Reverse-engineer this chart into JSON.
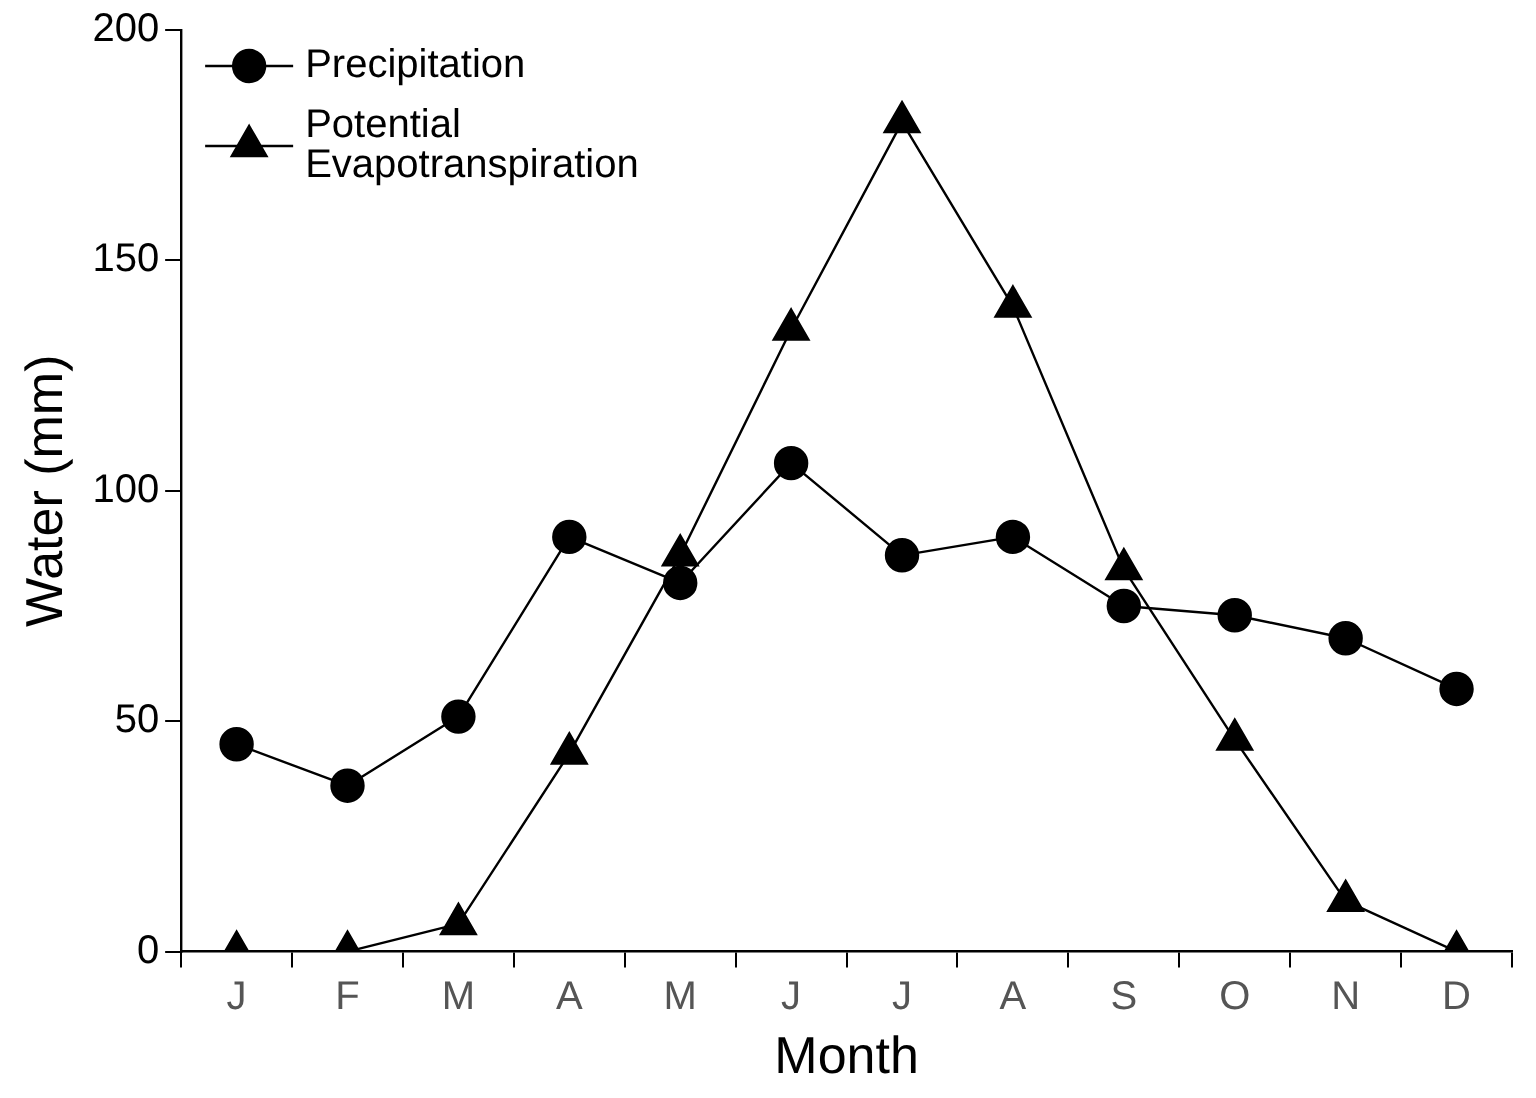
{
  "chart_data": {
    "type": "line",
    "xlabel": "Month",
    "ylabel": "Water (mm)",
    "categories": [
      "J",
      "F",
      "M",
      "A",
      "M",
      "J",
      "J",
      "A",
      "S",
      "O",
      "N",
      "D"
    ],
    "series": [
      {
        "name": "Precipitation",
        "color": "#000000",
        "marker": "circle",
        "values": [
          45,
          36,
          51,
          90,
          80,
          106,
          86,
          90,
          75,
          73,
          68,
          57
        ]
      },
      {
        "name": "Potential Evapotranspiration",
        "color": "#000000",
        "marker": "triangle",
        "values": [
          0,
          0,
          6,
          43,
          86,
          135,
          180,
          140,
          83,
          46,
          11,
          0
        ]
      }
    ],
    "ylim": [
      0,
      200
    ],
    "yticks": [
      0,
      50,
      100,
      150,
      200
    ],
    "grid": false,
    "legend": "top left",
    "line_style": "solid"
  }
}
